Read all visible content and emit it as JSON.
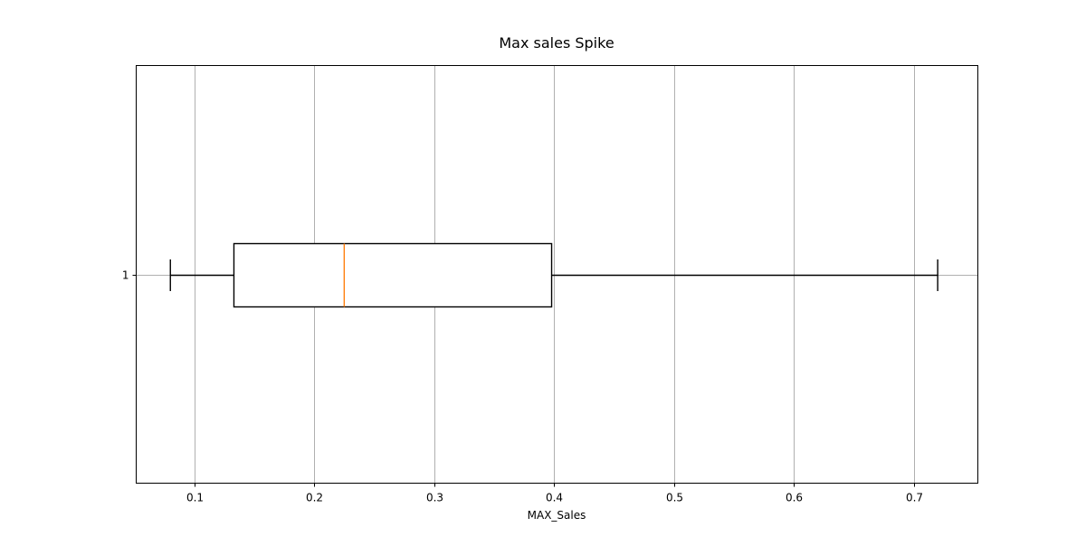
{
  "chart_data": {
    "type": "boxplot",
    "orientation": "horizontal",
    "title": "Max sales Spike",
    "xlabel": "MAX_Sales",
    "ylabel": "",
    "xlim": [
      0.0515,
      0.7535
    ],
    "xticks": [
      0.1,
      0.2,
      0.3,
      0.4,
      0.5,
      0.6,
      0.7
    ],
    "xtick_labels": [
      "0.1",
      "0.2",
      "0.3",
      "0.4",
      "0.5",
      "0.6",
      "0.7"
    ],
    "yticks": [
      1
    ],
    "ytick_labels": [
      "1"
    ],
    "grid": true,
    "boxes": [
      {
        "position": 1,
        "whisker_low": 0.08,
        "q1": 0.133,
        "median": 0.225,
        "q3": 0.398,
        "whisker_high": 0.72
      }
    ],
    "colors": {
      "box": "#000000",
      "median": "#ff7f0e",
      "grid": "#b0b0b0",
      "spine": "#000000"
    }
  }
}
